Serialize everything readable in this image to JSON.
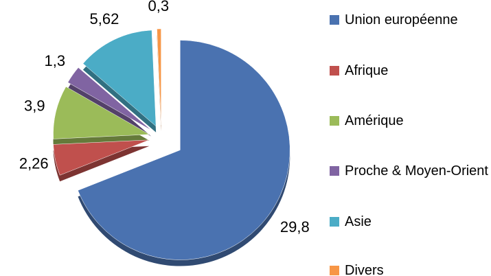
{
  "chart_data": {
    "type": "pie",
    "categories": [
      "Union européenne",
      "Afrique",
      "Amérique",
      "Proche & Moyen-Orient",
      "Asie",
      "Divers"
    ],
    "values": [
      29.8,
      2.26,
      3.9,
      1.3,
      5.62,
      0.3
    ],
    "value_labels": [
      "29,8",
      "2,26",
      "3,9",
      "1,3",
      "5,62",
      "0,3"
    ],
    "colors": [
      "#4a72b0",
      "#c0504d",
      "#9bbb59",
      "#8064a2",
      "#4bacc6",
      "#f79646"
    ],
    "legend": "right"
  }
}
